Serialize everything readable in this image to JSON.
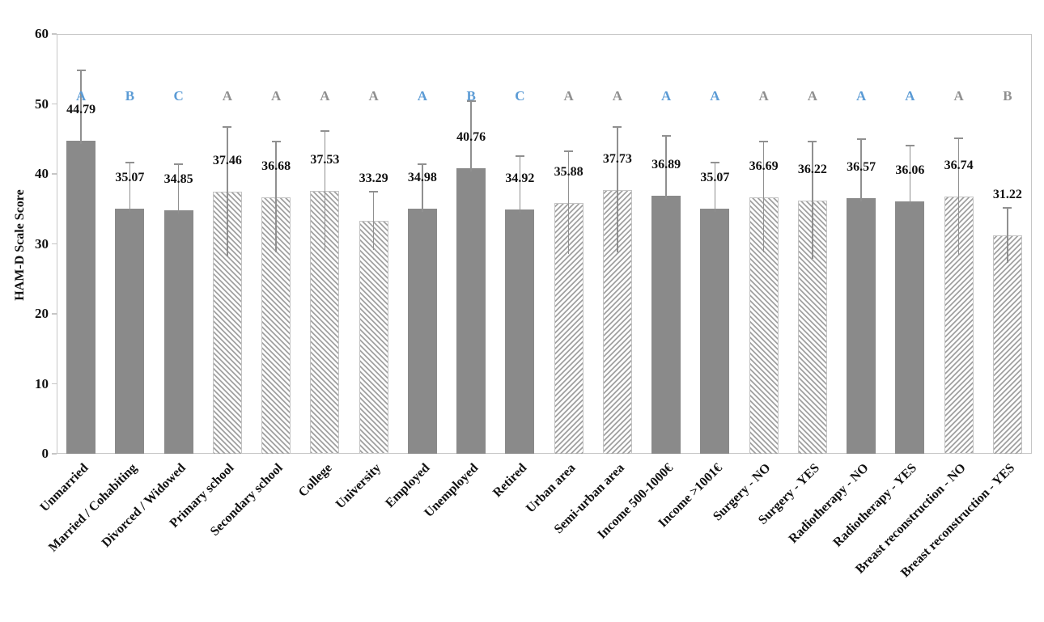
{
  "chart_data": {
    "type": "bar",
    "title": "",
    "xlabel": "",
    "ylabel": "HAM-D Scale Score",
    "ylim": [
      0,
      60
    ],
    "yticks": [
      0,
      10,
      20,
      30,
      40,
      50,
      60
    ],
    "grid": false,
    "legend": false,
    "bars": [
      {
        "category": "Unmarried",
        "value": 44.79,
        "error_plus": 10.0,
        "pattern": "solid",
        "letter": "A",
        "letter_color": "blue"
      },
      {
        "category": "Married / Cohabiting",
        "value": 35.07,
        "error_plus": 6.6,
        "pattern": "solid",
        "letter": "B",
        "letter_color": "blue"
      },
      {
        "category": "Divorced / Widowed",
        "value": 34.85,
        "error_plus": 6.5,
        "pattern": "solid",
        "letter": "C",
        "letter_color": "blue"
      },
      {
        "category": "Primary school",
        "value": 37.46,
        "error_plus": 9.2,
        "pattern": "hatch-down",
        "letter": "A",
        "letter_color": "gray"
      },
      {
        "category": "Secondary school",
        "value": 36.68,
        "error_plus": 7.9,
        "pattern": "hatch-down",
        "letter": "A",
        "letter_color": "gray"
      },
      {
        "category": "College",
        "value": 37.53,
        "error_plus": 8.6,
        "pattern": "hatch-down",
        "letter": "A",
        "letter_color": "gray"
      },
      {
        "category": "University",
        "value": 33.29,
        "error_plus": 4.2,
        "pattern": "hatch-down",
        "letter": "A",
        "letter_color": "gray"
      },
      {
        "category": "Employed",
        "value": 34.98,
        "error_plus": 6.4,
        "pattern": "solid",
        "letter": "A",
        "letter_color": "blue"
      },
      {
        "category": "Unemployed",
        "value": 40.76,
        "error_plus": 9.6,
        "pattern": "solid",
        "letter": "B",
        "letter_color": "blue"
      },
      {
        "category": "Retired",
        "value": 34.92,
        "error_plus": 7.6,
        "pattern": "solid",
        "letter": "C",
        "letter_color": "blue"
      },
      {
        "category": "Urban area",
        "value": 35.88,
        "error_plus": 7.3,
        "pattern": "hatch-up",
        "letter": "A",
        "letter_color": "gray"
      },
      {
        "category": "Semi-urban area",
        "value": 37.73,
        "error_plus": 9.0,
        "pattern": "hatch-up",
        "letter": "A",
        "letter_color": "gray"
      },
      {
        "category": "Income 500-1000€",
        "value": 36.89,
        "error_plus": 8.5,
        "pattern": "solid",
        "letter": "A",
        "letter_color": "blue"
      },
      {
        "category": "Income >1001€",
        "value": 35.07,
        "error_plus": 6.6,
        "pattern": "solid",
        "letter": "A",
        "letter_color": "blue"
      },
      {
        "category": "Surgery - NO",
        "value": 36.69,
        "error_plus": 7.9,
        "pattern": "hatch-down",
        "letter": "A",
        "letter_color": "gray"
      },
      {
        "category": "Surgery - YES",
        "value": 36.22,
        "error_plus": 8.4,
        "pattern": "hatch-down",
        "letter": "A",
        "letter_color": "gray"
      },
      {
        "category": "Radiotherapy - NO",
        "value": 36.57,
        "error_plus": 8.4,
        "pattern": "solid",
        "letter": "A",
        "letter_color": "blue"
      },
      {
        "category": "Radiotherapy - YES",
        "value": 36.06,
        "error_plus": 8.0,
        "pattern": "solid",
        "letter": "A",
        "letter_color": "blue"
      },
      {
        "category": "Breast reconstruction - NO",
        "value": 36.74,
        "error_plus": 8.3,
        "pattern": "hatch-up",
        "letter": "A",
        "letter_color": "gray"
      },
      {
        "category": "Breast reconstruction - YES",
        "value": 31.22,
        "error_plus": 3.9,
        "pattern": "hatch-up",
        "letter": "B",
        "letter_color": "gray"
      }
    ],
    "colors": {
      "bar_solid": "#8a8a8a",
      "hatch_line": "#9b9b9b",
      "hatch_background": "#ffffff",
      "error_bar": "#909090",
      "frame_border": "#c6c6c6",
      "letter_blue": "#5b9bd5",
      "letter_gray": "#8f8f8f",
      "text": "#111111",
      "background": "#ffffff"
    }
  }
}
